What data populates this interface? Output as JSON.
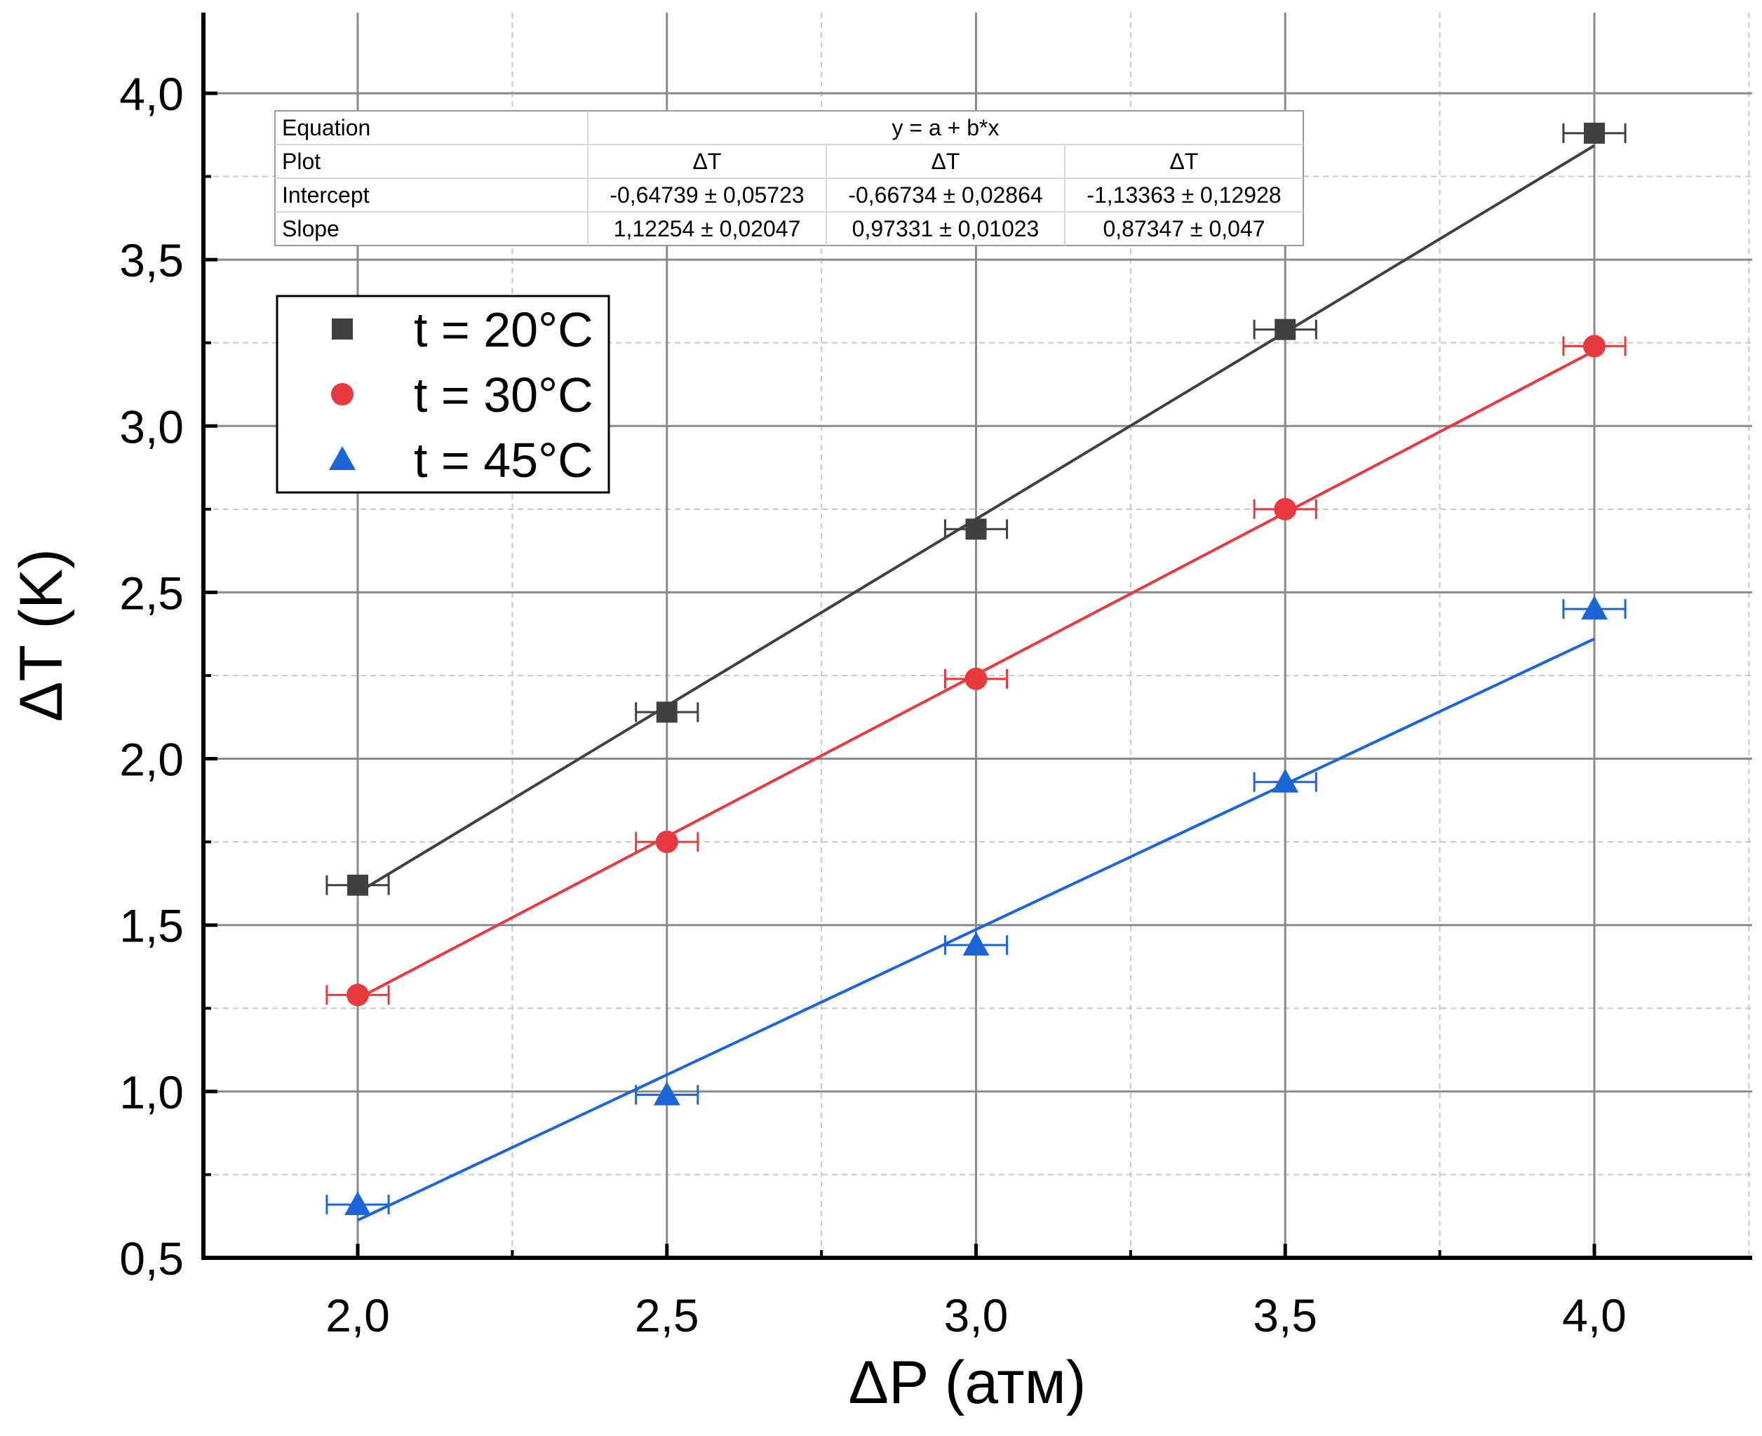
{
  "chart_data": {
    "type": "scatter",
    "xlabel": "ΔP (атм)",
    "ylabel": "ΔT (K)",
    "xlim": [
      1.75,
      4.25
    ],
    "ylim": [
      0.5,
      4.25
    ],
    "x_ticks": [
      2.0,
      2.5,
      3.0,
      3.5,
      4.0
    ],
    "x_tick_labels": [
      "2,0",
      "2,5",
      "3,0",
      "3,5",
      "4,0"
    ],
    "y_ticks": [
      0.5,
      1.0,
      1.5,
      2.0,
      2.5,
      3.0,
      3.5,
      4.0
    ],
    "y_tick_labels": [
      "0,5",
      "1,0",
      "1,5",
      "2,0",
      "2,5",
      "3,0",
      "3,5",
      "4,0"
    ],
    "grid": true,
    "x_error": 0.05,
    "legend_position": "top-left",
    "series": [
      {
        "name": "t = 20°C",
        "marker": "square",
        "color": "#404040",
        "x": [
          2.0,
          2.5,
          3.0,
          3.5,
          4.0
        ],
        "y": [
          1.62,
          2.14,
          2.69,
          3.29,
          3.88
        ],
        "fit": {
          "intercept": -0.64739,
          "slope": 1.12254
        }
      },
      {
        "name": "t = 30°C",
        "marker": "circle",
        "color": "#e8393e",
        "x": [
          2.0,
          2.5,
          3.0,
          3.5,
          4.0
        ],
        "y": [
          1.29,
          1.75,
          2.24,
          2.75,
          3.24
        ],
        "fit": {
          "intercept": -0.66734,
          "slope": 0.97331
        }
      },
      {
        "name": "t = 45°C",
        "marker": "triangle",
        "color": "#1a66d9",
        "x": [
          2.0,
          2.5,
          3.0,
          3.5,
          4.0
        ],
        "y": [
          0.66,
          0.99,
          1.44,
          1.93,
          2.45
        ],
        "fit": {
          "intercept": -1.13363,
          "slope": 0.87347
        }
      }
    ],
    "fit_table": {
      "rows": [
        {
          "label": "Equation",
          "cells": [
            "y = a + b*x"
          ]
        },
        {
          "label": "Plot",
          "cells": [
            "ΔT",
            "ΔT",
            "ΔT"
          ]
        },
        {
          "label": "Intercept",
          "cells": [
            "-0,64739 ± 0,05723",
            "-0,66734 ± 0,02864",
            "-1,13363 ± 0,12928"
          ]
        },
        {
          "label": "Slope",
          "cells": [
            "1,12254 ± 0,02047",
            "0,97331 ± 0,01023",
            "0,87347 ± 0,047"
          ]
        }
      ]
    }
  }
}
